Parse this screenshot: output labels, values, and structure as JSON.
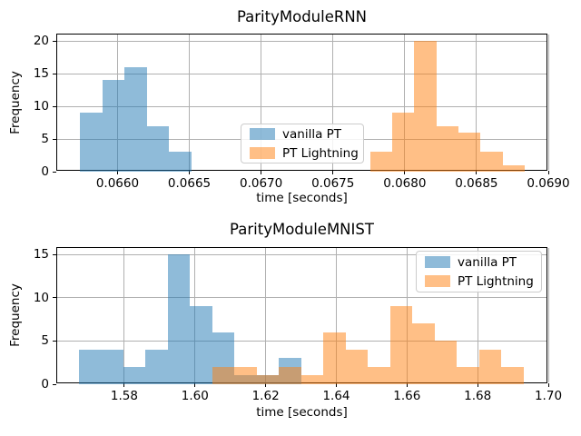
{
  "figure": {
    "background": "#ffffff",
    "grid_color": "#b0b0b0"
  },
  "chart_data": [
    {
      "type": "histogram",
      "title": "ParityModuleRNN",
      "xlabel": "time [seconds]",
      "ylabel": "Frequency",
      "xlim": [
        0.06558,
        0.069
      ],
      "ylim": [
        0,
        21
      ],
      "grid": true,
      "legend_location": "center",
      "xticks": {
        "values": [
          0.066,
          0.0665,
          0.067,
          0.0675,
          0.068,
          0.0685,
          0.069
        ],
        "labels": [
          "0.0660",
          "0.0665",
          "0.0670",
          "0.0675",
          "0.0680",
          "0.0685",
          "0.0690"
        ]
      },
      "yticks": {
        "values": [
          0,
          5,
          10,
          15,
          20
        ],
        "labels": [
          "0",
          "5",
          "10",
          "15",
          "20"
        ]
      },
      "series": [
        {
          "name": "vanilla PT",
          "color": "#1f77b4",
          "alpha": 0.5,
          "bin_start": 0.06574,
          "bin_width": 0.000155,
          "counts": [
            9,
            14,
            16,
            7,
            3
          ]
        },
        {
          "name": "PT Lightning",
          "color": "#ff7f0e",
          "alpha": 0.5,
          "bin_start": 0.06776,
          "bin_width": 0.0001535,
          "counts": [
            3,
            9,
            20,
            7,
            6,
            3,
            1
          ]
        }
      ]
    },
    {
      "type": "histogram",
      "title": "ParityModuleMNIST",
      "xlabel": "time [seconds]",
      "ylabel": "Frequency",
      "xlim": [
        1.561,
        1.7
      ],
      "ylim": [
        0,
        15.75
      ],
      "grid": true,
      "legend_location": "upper right",
      "xticks": {
        "values": [
          1.58,
          1.6,
          1.62,
          1.64,
          1.66,
          1.68,
          1.7
        ],
        "labels": [
          "1.58",
          "1.60",
          "1.62",
          "1.64",
          "1.66",
          "1.68",
          "1.70"
        ]
      },
      "yticks": {
        "values": [
          0,
          5,
          10,
          15
        ],
        "labels": [
          "0",
          "5",
          "10",
          "15"
        ]
      },
      "series": [
        {
          "name": "vanilla PT",
          "color": "#1f77b4",
          "alpha": 0.5,
          "bin_start": 1.5672,
          "bin_width": 0.00628,
          "counts": [
            4,
            4,
            2,
            4,
            15,
            9,
            6,
            1,
            1,
            3
          ]
        },
        {
          "name": "PT Lightning",
          "color": "#ff7f0e",
          "alpha": 0.5,
          "bin_start": 1.6049,
          "bin_width": 0.00629,
          "counts": [
            2,
            2,
            1,
            2,
            1,
            6,
            4,
            2,
            9,
            7,
            5,
            2,
            4,
            2
          ]
        }
      ]
    }
  ]
}
